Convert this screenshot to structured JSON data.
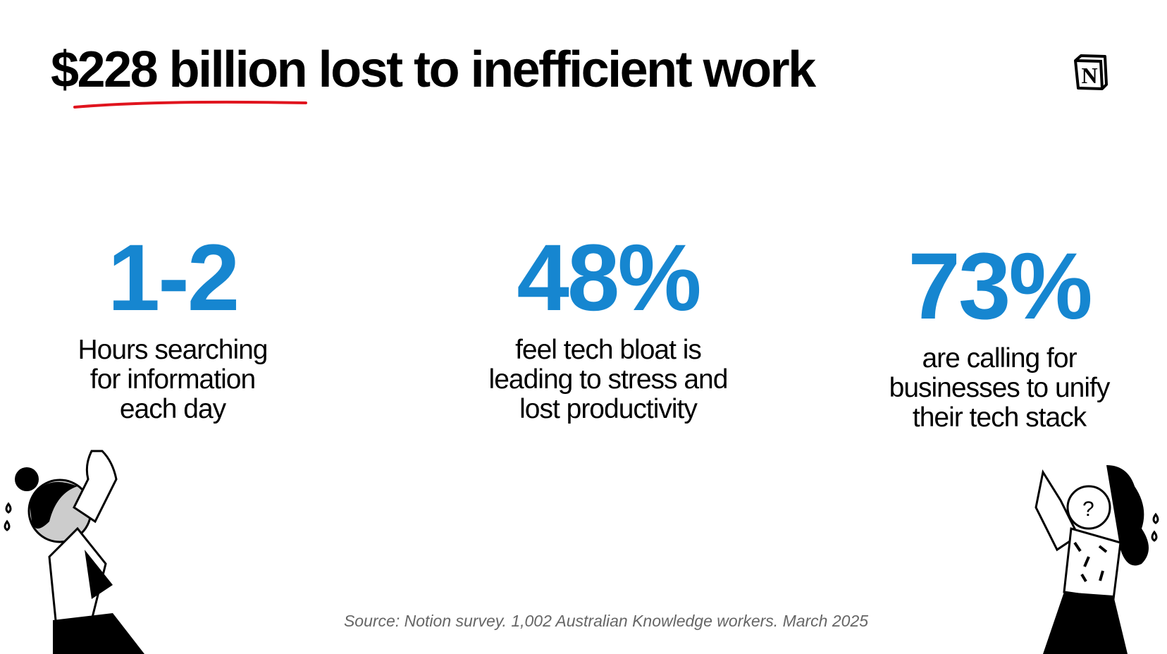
{
  "title": "$228 billion lost to inefficient work",
  "logo": "N",
  "colors": {
    "accent": "#1686d0",
    "underline": "#e0141e",
    "source": "#666666"
  },
  "stats": [
    {
      "value": "1-2",
      "lines": [
        "Hours searching",
        "for information",
        "each day"
      ]
    },
    {
      "value": "48%",
      "lines": [
        "feel tech bloat is",
        "leading to stress and",
        "lost productivity"
      ]
    },
    {
      "value": "73%",
      "lines": [
        "are calling for",
        "businesses to unify",
        "their tech stack"
      ]
    }
  ],
  "source": "Source: Notion survey. 1,002 Australian Knowledge workers. March 2025"
}
